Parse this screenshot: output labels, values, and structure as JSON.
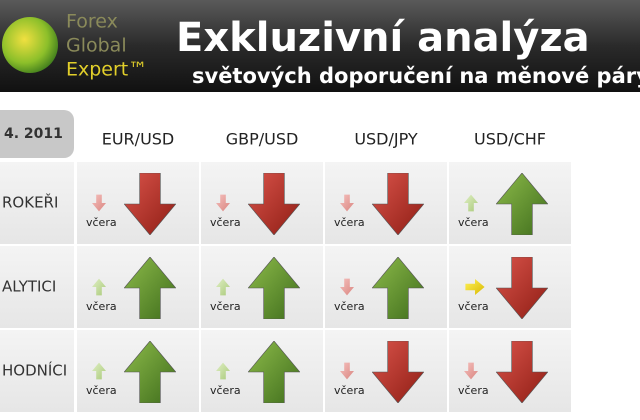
{
  "header": {
    "logo": [
      "Forex",
      "Global",
      "Expert™"
    ],
    "title": "Exkluzivní analýza",
    "subtitle": "světových doporučení na měnové páry"
  },
  "table": {
    "date": "4. 2011",
    "columns": [
      "EUR/USD",
      "GBP/USD",
      "USD/JPY",
      "USD/CHF"
    ],
    "rows": [
      {
        "label": "ROKEŘI",
        "cells": [
          "včera",
          "včera",
          "včera",
          "včera"
        ]
      },
      {
        "label": "ALYTICI",
        "cells": [
          "včera",
          "včera",
          "včera",
          "včera"
        ]
      },
      {
        "label": "HODNÍCI",
        "cells": [
          "včera",
          "včera",
          "včera",
          "včera"
        ]
      }
    ]
  }
}
